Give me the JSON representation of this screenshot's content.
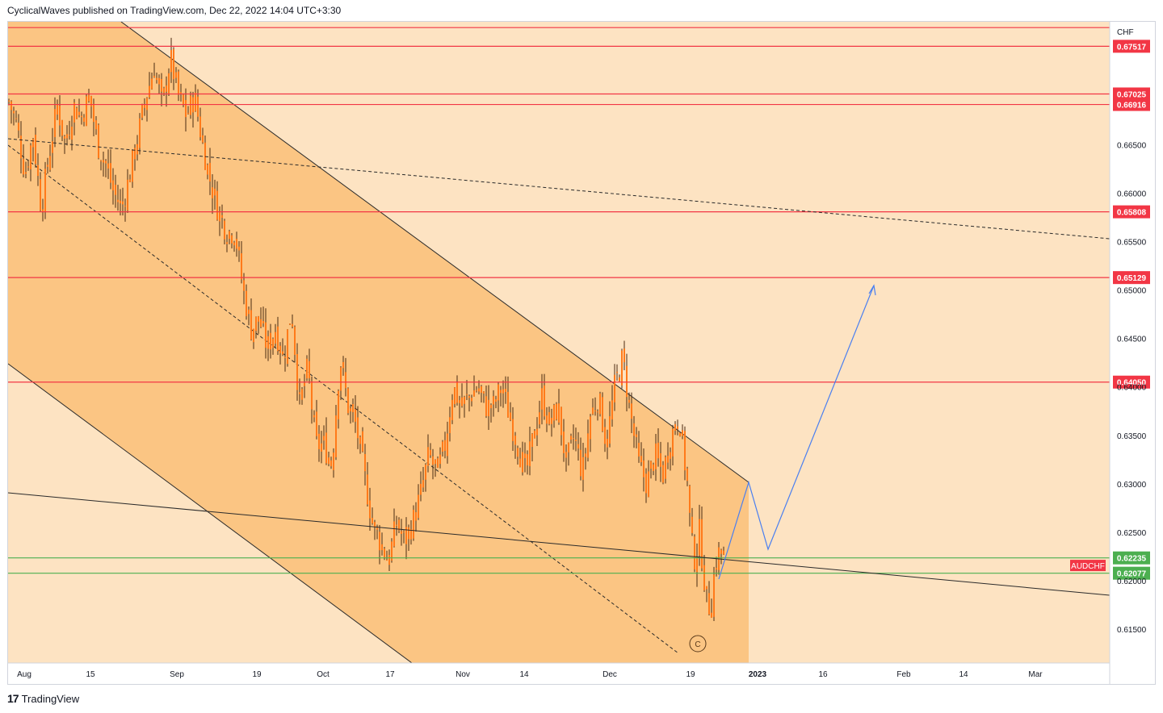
{
  "header": {
    "publish_line": "CyclicalWaves published on TradingView.com, Dec 22, 2022 14:04 UTC+3:30"
  },
  "footer": {
    "logo_glyph": "17",
    "brand": "TradingView"
  },
  "colors": {
    "background": "#fde3c2",
    "channel_fill": "#fbc583",
    "candle_up": "#ff7a1a",
    "candle_wick": "#4a2a10",
    "resistance_line": "#f23645",
    "support_line": "#4caf50",
    "projection_line": "#4a7ff0",
    "trend_line": "#2a2a2a"
  },
  "chart_data": {
    "type": "candlestick",
    "symbol": "AUDCHF",
    "currency_label": "CHF",
    "ylim": [
      0.6115,
      0.6777
    ],
    "y_ticks": [
      0.615,
      0.62,
      0.625,
      0.63,
      0.635,
      0.64,
      0.645,
      0.65,
      0.655,
      0.66,
      0.665
    ],
    "x_tick_labels": [
      "Aug",
      "15",
      "Sep",
      "19",
      "Oct",
      "17",
      "Nov",
      "14",
      "Dec",
      "19",
      "2023",
      "16",
      "Feb",
      "14",
      "Mar"
    ],
    "resistance_levels": [
      "0.67517",
      "0.67025",
      "0.66916",
      "0.65808",
      "0.65129",
      "0.64050"
    ],
    "support_levels": [
      "0.62235",
      "0.62077"
    ],
    "top_line_level": 0.6771,
    "symbol_tag": "AUDCHF",
    "wave_label": "C",
    "price_path": [
      [
        0,
        0.6695
      ],
      [
        10,
        0.667
      ],
      [
        20,
        0.662
      ],
      [
        30,
        0.666
      ],
      [
        40,
        0.6585
      ],
      [
        50,
        0.664
      ],
      [
        60,
        0.669
      ],
      [
        70,
        0.665
      ],
      [
        80,
        0.669
      ],
      [
        90,
        0.668
      ],
      [
        100,
        0.67
      ],
      [
        110,
        0.665
      ],
      [
        120,
        0.663
      ],
      [
        130,
        0.66
      ],
      [
        140,
        0.6585
      ],
      [
        150,
        0.662
      ],
      [
        160,
        0.666
      ],
      [
        170,
        0.67
      ],
      [
        180,
        0.673
      ],
      [
        190,
        0.669
      ],
      [
        200,
        0.674
      ],
      [
        210,
        0.67
      ],
      [
        220,
        0.668
      ],
      [
        230,
        0.67
      ],
      [
        240,
        0.665
      ],
      [
        250,
        0.661
      ],
      [
        260,
        0.658
      ],
      [
        270,
        0.656
      ],
      [
        280,
        0.656
      ],
      [
        290,
        0.65
      ],
      [
        300,
        0.646
      ],
      [
        310,
        0.647
      ],
      [
        320,
        0.644
      ],
      [
        330,
        0.646
      ],
      [
        340,
        0.643
      ],
      [
        350,
        0.648
      ],
      [
        360,
        0.638
      ],
      [
        370,
        0.642
      ],
      [
        380,
        0.634
      ],
      [
        390,
        0.634
      ],
      [
        400,
        0.632
      ],
      [
        410,
        0.643
      ],
      [
        420,
        0.638
      ],
      [
        430,
        0.636
      ],
      [
        440,
        0.631
      ],
      [
        450,
        0.626
      ],
      [
        460,
        0.624
      ],
      [
        470,
        0.622
      ],
      [
        480,
        0.626
      ],
      [
        490,
        0.624
      ],
      [
        500,
        0.626
      ],
      [
        510,
        0.629
      ],
      [
        520,
        0.633
      ],
      [
        530,
        0.631
      ],
      [
        540,
        0.634
      ],
      [
        550,
        0.64
      ],
      [
        560,
        0.638
      ],
      [
        570,
        0.639
      ],
      [
        580,
        0.64
      ],
      [
        590,
        0.638
      ],
      [
        600,
        0.638
      ],
      [
        610,
        0.64
      ],
      [
        620,
        0.637
      ],
      [
        630,
        0.634
      ],
      [
        640,
        0.631
      ],
      [
        650,
        0.635
      ],
      [
        660,
        0.639
      ],
      [
        670,
        0.636
      ],
      [
        680,
        0.638
      ],
      [
        690,
        0.632
      ],
      [
        700,
        0.635
      ],
      [
        710,
        0.631
      ],
      [
        720,
        0.637
      ],
      [
        730,
        0.639
      ],
      [
        740,
        0.634
      ],
      [
        750,
        0.64
      ],
      [
        760,
        0.643
      ],
      [
        770,
        0.637
      ],
      [
        780,
        0.632
      ],
      [
        790,
        0.63
      ],
      [
        800,
        0.633
      ],
      [
        810,
        0.631
      ],
      [
        820,
        0.635
      ],
      [
        830,
        0.637
      ],
      [
        840,
        0.63
      ],
      [
        845,
        0.624
      ],
      [
        850,
        0.622
      ],
      [
        855,
        0.625
      ],
      [
        860,
        0.621
      ],
      [
        865,
        0.617
      ],
      [
        870,
        0.618
      ],
      [
        875,
        0.622
      ],
      [
        880,
        0.623
      ],
      [
        885,
        0.6225
      ]
    ]
  }
}
